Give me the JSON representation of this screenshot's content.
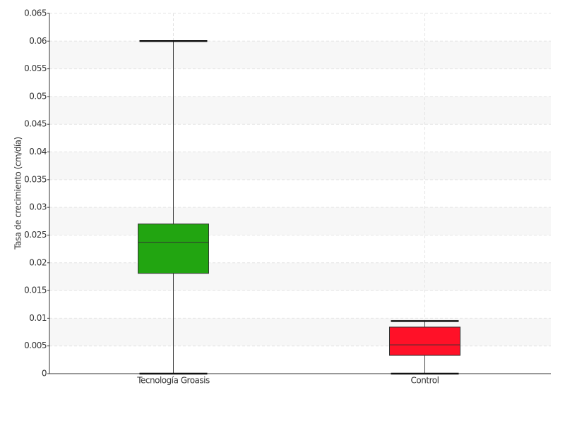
{
  "chart_data": {
    "type": "box",
    "y_label": "Tasa de crecimiento (cm/día)",
    "categories": [
      "Tecnología Groasis",
      "Control"
    ],
    "colors": [
      "#22a511",
      "#ff1128"
    ],
    "boxes": [
      {
        "min": 0,
        "q1": 0.0181,
        "median": 0.0237,
        "q3": 0.027,
        "max": 0.06
      },
      {
        "min": 0,
        "q1": 0.0033,
        "median": 0.0052,
        "q3": 0.0084,
        "max": 0.0095
      }
    ],
    "ylim": [
      0,
      0.065
    ],
    "yticks": [
      0,
      0.005,
      0.01,
      0.015,
      0.02,
      0.025,
      0.03,
      0.035,
      0.04,
      0.045,
      0.05,
      0.055,
      0.06,
      0.065
    ],
    "grid": true
  }
}
